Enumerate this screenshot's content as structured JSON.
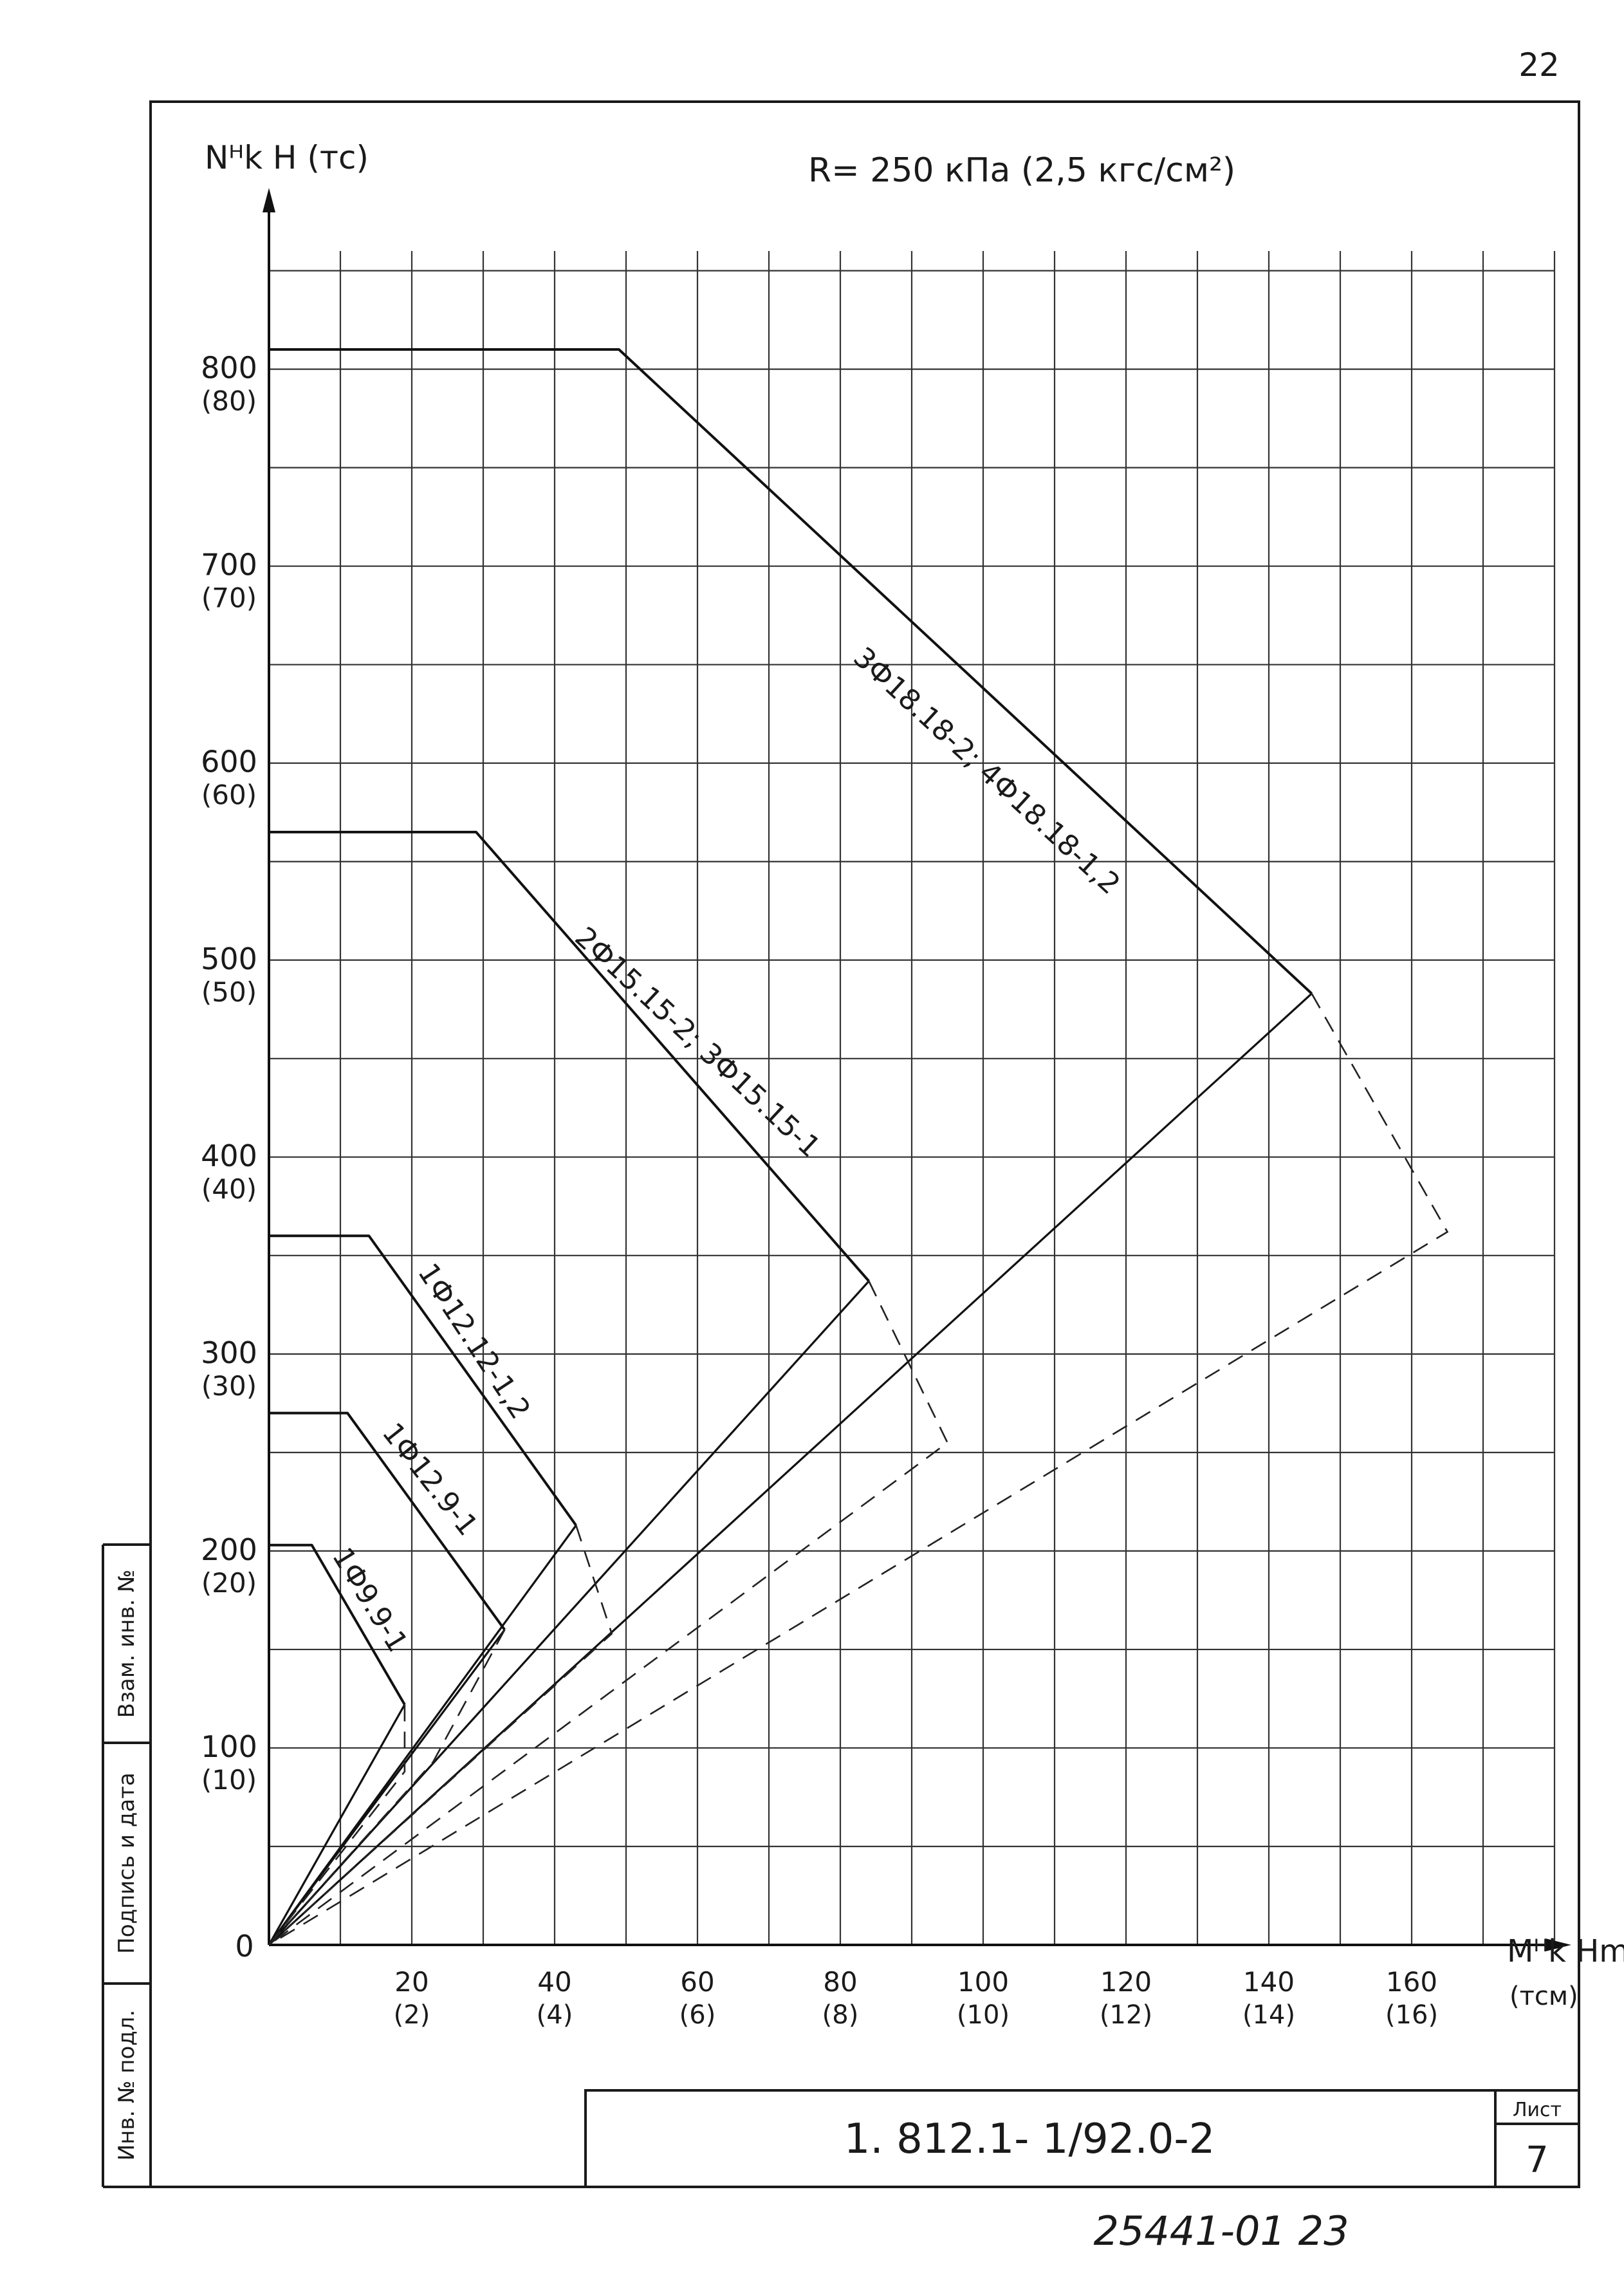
{
  "sheet_top_number": "22",
  "archive_number": "25441-01  23",
  "title_block": {
    "code": "1. 812.1- 1/92.0-2",
    "sheet_label": "Лист",
    "sheet_number": "7"
  },
  "side_stamp": {
    "fields": [
      "Инв. № подл.",
      "Подпись и дата",
      "Взам. инв. №"
    ]
  },
  "chart_data": {
    "type": "line",
    "title": "R= 250 кПа (2,5 кгс/см²)",
    "ylabel": "Nᴴk H (тс)",
    "xlabel": "Mᴴk Hm",
    "xlabel_units": "(тсм)",
    "xlim": [
      0,
      180
    ],
    "ylim": [
      0,
      860
    ],
    "grid": true,
    "x_ticks": [
      {
        "value": 20,
        "label": "20",
        "alt": "(2)"
      },
      {
        "value": 40,
        "label": "40",
        "alt": "(4)"
      },
      {
        "value": 60,
        "label": "60",
        "alt": "(6)"
      },
      {
        "value": 80,
        "label": "80",
        "alt": "(8)"
      },
      {
        "value": 100,
        "label": "100",
        "alt": "(10)"
      },
      {
        "value": 120,
        "label": "120",
        "alt": "(12)"
      },
      {
        "value": 140,
        "label": "140",
        "alt": "(14)"
      },
      {
        "value": 160,
        "label": "160",
        "alt": "(16)"
      }
    ],
    "y_ticks": [
      {
        "value": 0,
        "label": "0",
        "alt": ""
      },
      {
        "value": 100,
        "label": "100",
        "alt": "(10)"
      },
      {
        "value": 200,
        "label": "200",
        "alt": "(20)"
      },
      {
        "value": 300,
        "label": "300",
        "alt": "(30)"
      },
      {
        "value": 400,
        "label": "400",
        "alt": "(40)"
      },
      {
        "value": 500,
        "label": "500",
        "alt": "(50)"
      },
      {
        "value": 600,
        "label": "600",
        "alt": "(60)"
      },
      {
        "value": 700,
        "label": "700",
        "alt": "(70)"
      },
      {
        "value": 800,
        "label": "800",
        "alt": "(80)"
      }
    ],
    "series": [
      {
        "name": "3Ф18.18-2; 4Ф18.18-1,2",
        "curve": {
          "x": [
            0,
            49,
            146
          ],
          "y": [
            810,
            810,
            483
          ]
        },
        "radial": [
          [
            0,
            0
          ],
          [
            146,
            483
          ]
        ],
        "dashed": {
          "x": [
            146,
            165,
            0
          ],
          "y": [
            483,
            362,
            0
          ]
        },
        "label_from": [
          81,
          650
        ],
        "label_to": [
          127,
          497
        ]
      },
      {
        "name": "2Ф15.15-2; 3Ф15.15-1",
        "curve": {
          "x": [
            0,
            29,
            84
          ],
          "y": [
            565,
            565,
            337
          ]
        },
        "radial": [
          [
            0,
            0
          ],
          [
            84,
            337
          ]
        ],
        "dashed": {
          "x": [
            84,
            95,
            0
          ],
          "y": [
            337,
            255,
            0
          ]
        },
        "label_from": [
          42,
          508
        ],
        "label_to": [
          80,
          380
        ]
      },
      {
        "name": "1Ф12.12-1,2",
        "curve": {
          "x": [
            0,
            14,
            43
          ],
          "y": [
            360,
            360,
            213
          ]
        },
        "radial": [
          [
            0,
            0
          ],
          [
            43,
            213
          ]
        ],
        "dashed": {
          "x": [
            43,
            48,
            0
          ],
          "y": [
            213,
            158,
            0
          ]
        },
        "label_from": [
          20,
          340
        ],
        "label_to": [
          39,
          235
        ]
      },
      {
        "name": "1Ф12.9-1",
        "curve": {
          "x": [
            0,
            11,
            33
          ],
          "y": [
            270,
            270,
            160
          ]
        },
        "radial": [
          [
            0,
            0
          ],
          [
            33,
            160
          ]
        ],
        "dashed": {
          "x": [
            33,
            23,
            0
          ],
          "y": [
            160,
            93,
            0
          ]
        },
        "label_from": [
          15,
          258
        ],
        "label_to": [
          32,
          180
        ]
      },
      {
        "name": "1Ф9.9-1",
        "curve": {
          "x": [
            0,
            6,
            19
          ],
          "y": [
            203,
            203,
            122
          ]
        },
        "radial": [
          [
            0,
            0
          ],
          [
            19,
            122
          ]
        ],
        "dashed": {
          "x": [
            19,
            19,
            0
          ],
          "y": [
            122,
            88,
            0
          ]
        },
        "label_from": [
          8,
          196
        ],
        "label_to": [
          19,
          131
        ]
      }
    ]
  }
}
